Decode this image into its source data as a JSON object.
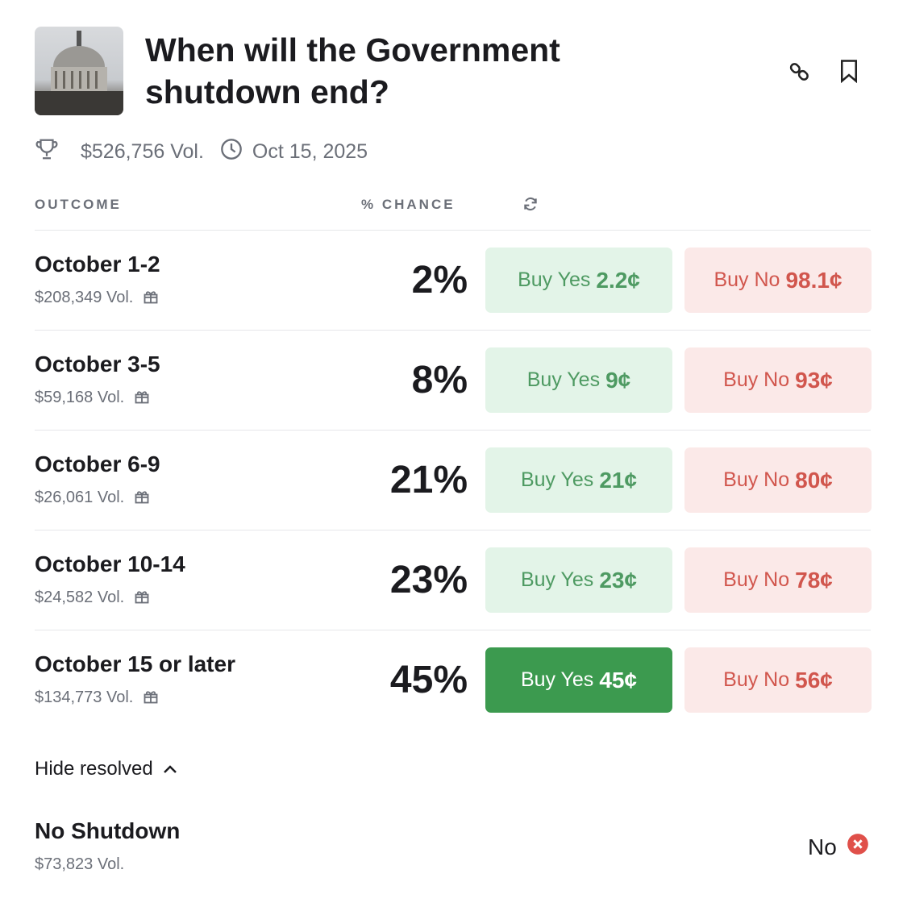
{
  "title": "When will the Government shutdown end?",
  "volume": "$526,756 Vol.",
  "end_date": "Oct 15, 2025",
  "headers": {
    "outcome": "OUTCOME",
    "chance": "% CHANCE"
  },
  "outcomes": [
    {
      "name": "October 1-2",
      "vol": "$208,349 Vol.",
      "chance": "2%",
      "yes_label": "Buy Yes",
      "yes_price": "2.2¢",
      "no_label": "Buy No",
      "no_price": "98.1¢"
    },
    {
      "name": "October 3-5",
      "vol": "$59,168 Vol.",
      "chance": "8%",
      "yes_label": "Buy Yes",
      "yes_price": "9¢",
      "no_label": "Buy No",
      "no_price": "93¢"
    },
    {
      "name": "October 6-9",
      "vol": "$26,061 Vol.",
      "chance": "21%",
      "yes_label": "Buy Yes",
      "yes_price": "21¢",
      "no_label": "Buy No",
      "no_price": "80¢"
    },
    {
      "name": "October 10-14",
      "vol": "$24,582 Vol.",
      "chance": "23%",
      "yes_label": "Buy Yes",
      "yes_price": "23¢",
      "no_label": "Buy No",
      "no_price": "78¢"
    },
    {
      "name": "October 15 or later",
      "vol": "$134,773 Vol.",
      "chance": "45%",
      "yes_label": "Buy Yes",
      "yes_price": "45¢",
      "no_label": "Buy No",
      "no_price": "56¢"
    }
  ],
  "hide_resolved": "Hide resolved",
  "resolved": [
    {
      "name": "No Shutdown",
      "vol": "$73,823 Vol.",
      "result": "No"
    }
  ],
  "colors": {
    "yes": "#3c9a4f",
    "no": "#d1564d"
  }
}
